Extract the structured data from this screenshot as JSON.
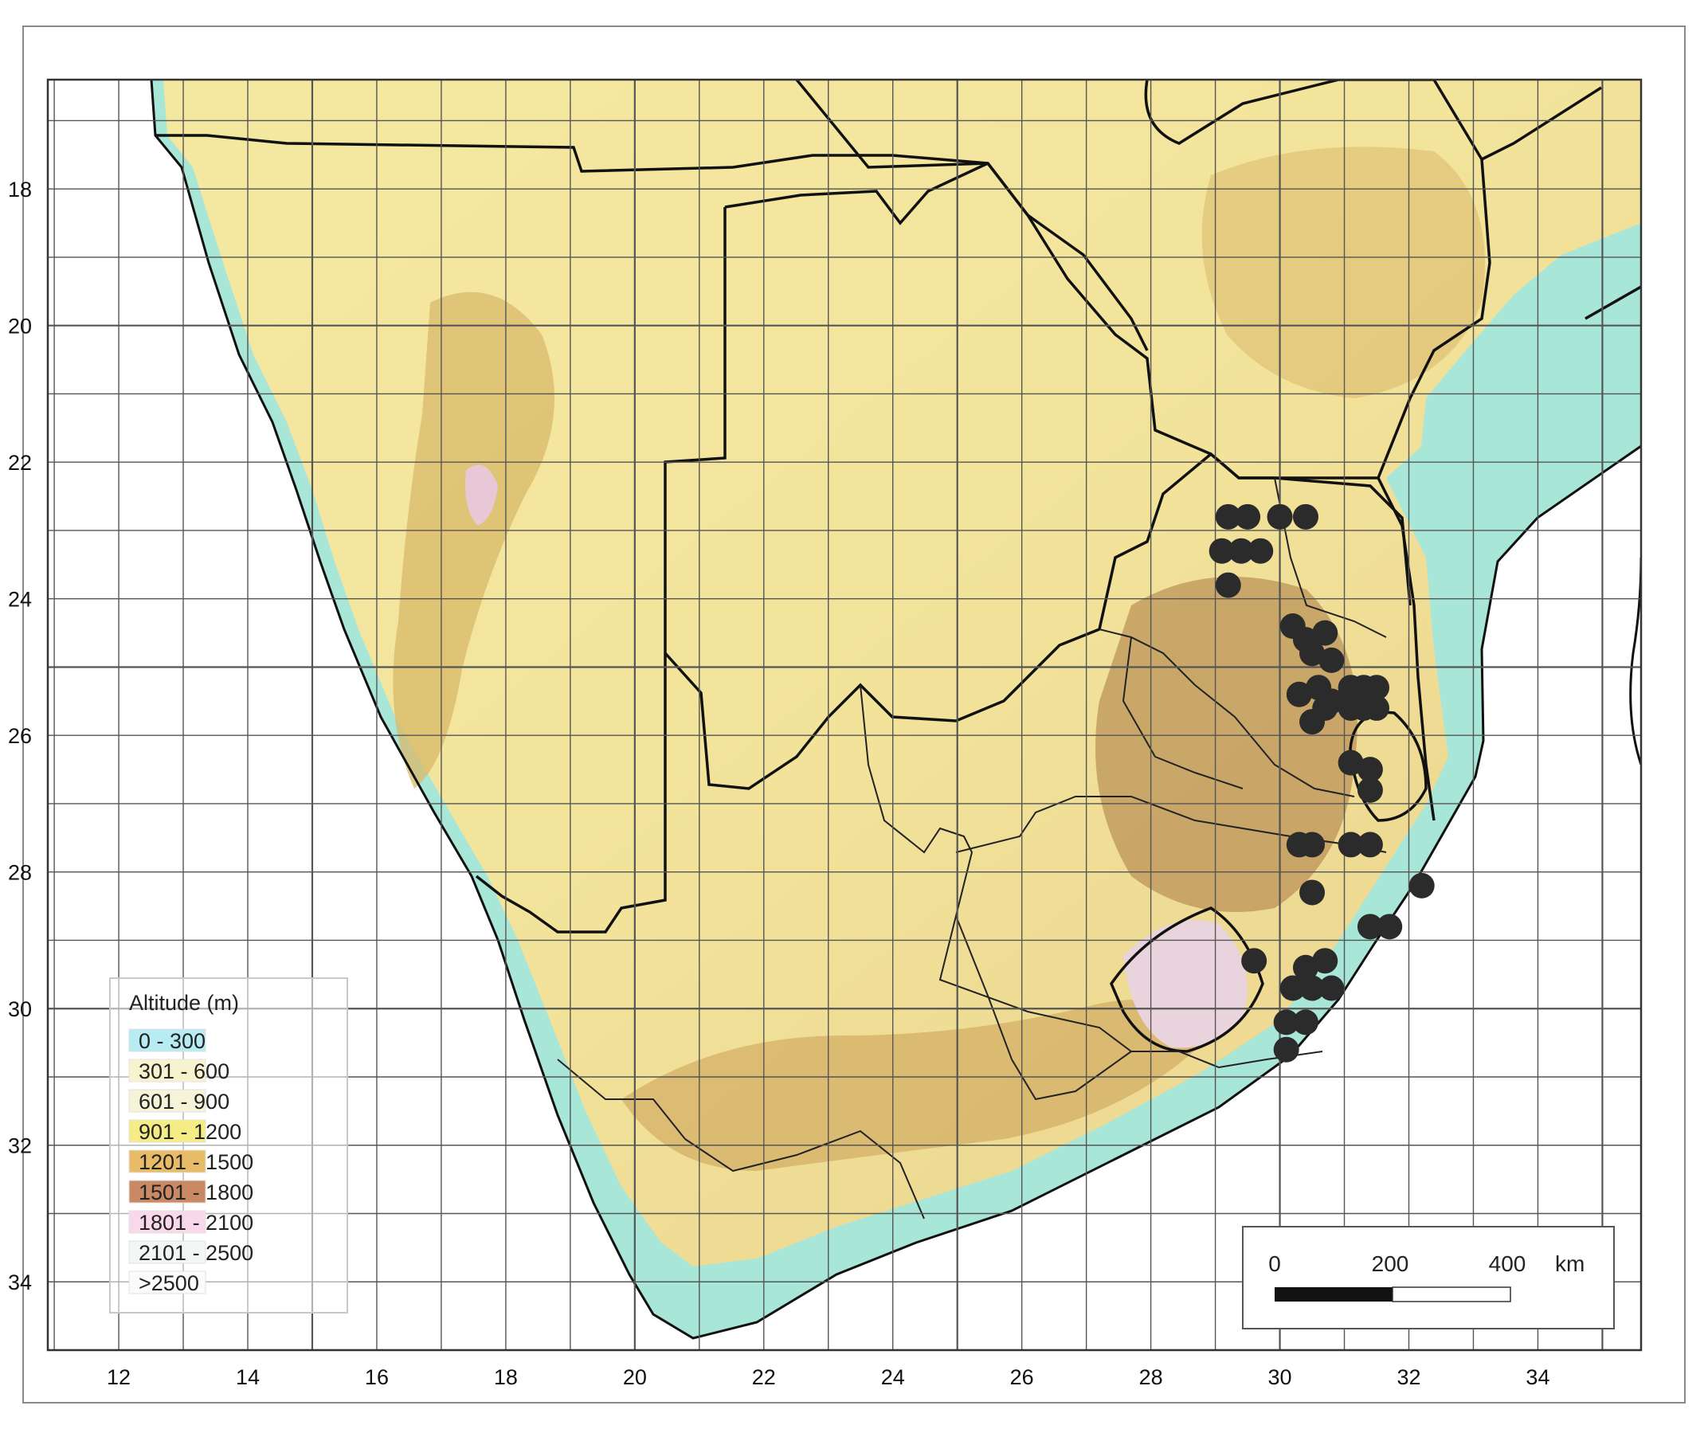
{
  "map": {
    "projection": "geographic-grid",
    "x_ticks": [
      "12",
      "14",
      "16",
      "18",
      "20",
      "22",
      "24",
      "26",
      "28",
      "30",
      "32",
      "34"
    ],
    "y_ticks": [
      "18",
      "20",
      "22",
      "24",
      "26",
      "28",
      "30",
      "32",
      "34"
    ],
    "colors": {
      "ocean": "#ffffff",
      "lowland": "#a8e6d8",
      "plain": "#f6efb4",
      "plateau": "#ece08c",
      "high": "#d9b86a",
      "higher": "#b48850",
      "peak": "#e8c8d6",
      "border": "#111111",
      "grid": "#555555",
      "occurrence": "#2b2b2b"
    }
  },
  "legend": {
    "title": "Altitude (m)",
    "items": [
      {
        "label": "0 - 300",
        "color": "#b6ecf2"
      },
      {
        "label": "301 - 600",
        "color": "#f8f3cf"
      },
      {
        "label": "601 - 900",
        "color": "#f5f3d8"
      },
      {
        "label": "901 - 1200",
        "color": "#f6ec86"
      },
      {
        "label": "1201 - 1500",
        "color": "#e8bb66"
      },
      {
        "label": "1501 - 1800",
        "color": "#c98964"
      },
      {
        "label": "1801 - 2100",
        "color": "#f8d8ea"
      },
      {
        "label": "2101 - 2500",
        "color": "#f2f6f4"
      },
      {
        "label": ">2500",
        "color": "#fbfbfb"
      }
    ]
  },
  "scale_bar": {
    "labels": [
      "0",
      "200",
      "400"
    ],
    "unit": "km"
  },
  "occurrences": [
    {
      "lon": 29.2,
      "lat": 22.8
    },
    {
      "lon": 29.5,
      "lat": 22.8
    },
    {
      "lon": 30.0,
      "lat": 22.8
    },
    {
      "lon": 30.4,
      "lat": 22.8
    },
    {
      "lon": 29.1,
      "lat": 23.3
    },
    {
      "lon": 29.4,
      "lat": 23.3
    },
    {
      "lon": 29.7,
      "lat": 23.3
    },
    {
      "lon": 29.2,
      "lat": 23.8
    },
    {
      "lon": 30.2,
      "lat": 24.4
    },
    {
      "lon": 30.4,
      "lat": 24.6
    },
    {
      "lon": 30.7,
      "lat": 24.5
    },
    {
      "lon": 30.5,
      "lat": 24.8
    },
    {
      "lon": 30.8,
      "lat": 24.9
    },
    {
      "lon": 30.3,
      "lat": 25.4
    },
    {
      "lon": 30.6,
      "lat": 25.3
    },
    {
      "lon": 30.8,
      "lat": 25.5
    },
    {
      "lon": 31.1,
      "lat": 25.3
    },
    {
      "lon": 31.3,
      "lat": 25.3
    },
    {
      "lon": 31.5,
      "lat": 25.3
    },
    {
      "lon": 31.1,
      "lat": 25.6
    },
    {
      "lon": 31.3,
      "lat": 25.6
    },
    {
      "lon": 31.5,
      "lat": 25.6
    },
    {
      "lon": 30.5,
      "lat": 25.8
    },
    {
      "lon": 30.7,
      "lat": 25.6
    },
    {
      "lon": 31.1,
      "lat": 26.4
    },
    {
      "lon": 31.4,
      "lat": 26.5
    },
    {
      "lon": 31.4,
      "lat": 26.8
    },
    {
      "lon": 30.3,
      "lat": 27.6
    },
    {
      "lon": 30.5,
      "lat": 27.6
    },
    {
      "lon": 31.1,
      "lat": 27.6
    },
    {
      "lon": 31.4,
      "lat": 27.6
    },
    {
      "lon": 32.2,
      "lat": 28.2
    },
    {
      "lon": 30.5,
      "lat": 28.3
    },
    {
      "lon": 31.4,
      "lat": 28.8
    },
    {
      "lon": 31.7,
      "lat": 28.8
    },
    {
      "lon": 29.6,
      "lat": 29.3
    },
    {
      "lon": 30.4,
      "lat": 29.4
    },
    {
      "lon": 30.7,
      "lat": 29.3
    },
    {
      "lon": 30.2,
      "lat": 29.7
    },
    {
      "lon": 30.5,
      "lat": 29.7
    },
    {
      "lon": 30.8,
      "lat": 29.7
    },
    {
      "lon": 30.1,
      "lat": 30.2
    },
    {
      "lon": 30.4,
      "lat": 30.2
    },
    {
      "lon": 30.1,
      "lat": 30.6
    }
  ]
}
